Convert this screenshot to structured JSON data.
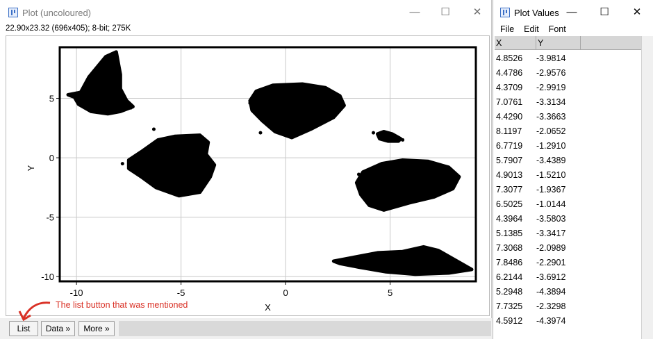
{
  "plot_window": {
    "title": "Plot (uncoloured)",
    "info": "22.90x23.32   (696x405); 8-bit; 275K",
    "buttons": {
      "list": "List",
      "data": "Data »",
      "more": "More »"
    }
  },
  "values_window": {
    "title": "Plot Values",
    "menu": [
      "File",
      "Edit",
      "Font"
    ],
    "columns": [
      "X",
      "Y"
    ],
    "rows": [
      [
        "4.8526",
        "-3.9814"
      ],
      [
        "4.4786",
        "-2.9576"
      ],
      [
        "4.3709",
        "-2.9919"
      ],
      [
        "7.0761",
        "-3.3134"
      ],
      [
        "4.4290",
        "-3.3663"
      ],
      [
        "8.1197",
        "-2.0652"
      ],
      [
        "6.7719",
        "-1.2910"
      ],
      [
        "5.7907",
        "-3.4389"
      ],
      [
        "4.9013",
        "-1.5210"
      ],
      [
        "7.3077",
        "-1.9367"
      ],
      [
        "6.5025",
        "-1.0144"
      ],
      [
        "4.3964",
        "-3.5803"
      ],
      [
        "5.1385",
        "-3.3417"
      ],
      [
        "7.3068",
        "-2.0989"
      ],
      [
        "7.8486",
        "-2.2901"
      ],
      [
        "6.2144",
        "-3.6912"
      ],
      [
        "5.2948",
        "-4.3894"
      ],
      [
        "7.7325",
        "-2.3298"
      ],
      [
        "4.5912",
        "-4.3974"
      ]
    ]
  },
  "annotation": "The list button that was mentioned",
  "chart_data": {
    "type": "scatter",
    "xlabel": "X",
    "ylabel": "Y",
    "xlim": [
      -10.8,
      9.1
    ],
    "ylim": [
      -10.4,
      9.3
    ],
    "xticks": [
      -10,
      -5,
      0,
      5
    ],
    "yticks": [
      5,
      0,
      -5,
      -10
    ],
    "grid": true,
    "clusters": [
      {
        "center": [
          -8.9,
          6.3
        ],
        "shape": "triangle-blob"
      },
      {
        "center": [
          0.5,
          4.0
        ],
        "shape": "ellipse"
      },
      {
        "center": [
          -5.3,
          -0.3
        ],
        "shape": "blob"
      },
      {
        "center": [
          5.2,
          -2.1
        ],
        "shape": "ellipse"
      },
      {
        "center": [
          4.9,
          1.7
        ],
        "shape": "small-blob"
      },
      {
        "center": [
          5.8,
          -8.8
        ],
        "shape": "spindle"
      }
    ],
    "color": "#000000"
  }
}
